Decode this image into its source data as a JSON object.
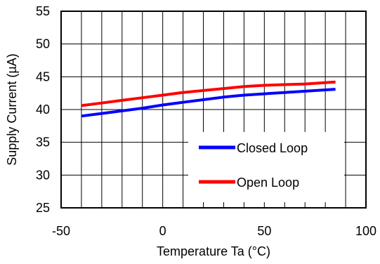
{
  "chart_data": {
    "type": "line",
    "xlabel": "Temperature Ta (°C)",
    "ylabel": "Supply Current  (µA)",
    "xlim": [
      -50,
      100
    ],
    "ylim": [
      25,
      55
    ],
    "x_ticks": [
      -50,
      0,
      50,
      100
    ],
    "y_ticks": [
      25,
      30,
      35,
      40,
      45,
      50,
      55
    ],
    "x_tick_labels": [
      "-50",
      "0",
      "50",
      "100"
    ],
    "y_tick_labels": [
      "25",
      "30",
      "35",
      "40",
      "45",
      "50",
      "55"
    ],
    "x_minor_step": 10,
    "grid": true,
    "legend_position": "bottom-right",
    "series": [
      {
        "name": "Closed Loop",
        "color": "#0000ff",
        "x": [
          -40,
          -30,
          -20,
          -10,
          0,
          10,
          20,
          30,
          40,
          50,
          60,
          70,
          85
        ],
        "values": [
          39.0,
          39.4,
          39.8,
          40.2,
          40.7,
          41.1,
          41.5,
          41.9,
          42.2,
          42.4,
          42.6,
          42.8,
          43.1
        ]
      },
      {
        "name": "Open Loop",
        "color": "#ff0000",
        "x": [
          -40,
          -30,
          -20,
          -10,
          0,
          10,
          20,
          30,
          40,
          50,
          60,
          70,
          85
        ],
        "values": [
          40.6,
          41.0,
          41.4,
          41.8,
          42.2,
          42.6,
          42.9,
          43.2,
          43.5,
          43.7,
          43.8,
          43.9,
          44.2
        ]
      }
    ]
  }
}
